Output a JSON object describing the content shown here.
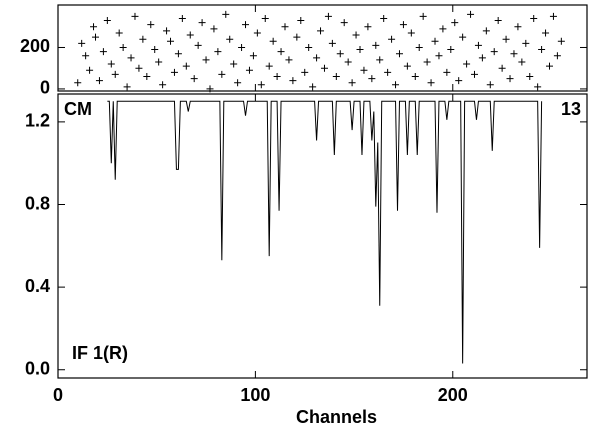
{
  "chart_data": [
    {
      "type": "scatter",
      "color": "#000000",
      "x": [
        10,
        12,
        14,
        16,
        18,
        19,
        21,
        23,
        25,
        27,
        29,
        31,
        33,
        35,
        37,
        39,
        41,
        43,
        45,
        47,
        49,
        51,
        53,
        55,
        57,
        59,
        61,
        63,
        65,
        67,
        69,
        71,
        73,
        75,
        77,
        79,
        81,
        83,
        85,
        87,
        89,
        91,
        93,
        95,
        97,
        99,
        101,
        103,
        105,
        107,
        109,
        111,
        113,
        115,
        117,
        119,
        121,
        123,
        125,
        127,
        129,
        131,
        133,
        135,
        137,
        139,
        141,
        143,
        145,
        147,
        149,
        151,
        153,
        155,
        157,
        159,
        161,
        163,
        165,
        167,
        169,
        171,
        173,
        175,
        177,
        179,
        181,
        183,
        185,
        187,
        189,
        191,
        193,
        195,
        197,
        199,
        201,
        203,
        205,
        207,
        209,
        211,
        213,
        215,
        217,
        219,
        221,
        223,
        225,
        227,
        229,
        231,
        233,
        235,
        237,
        239,
        241,
        243,
        245,
        247,
        249,
        251,
        253,
        255
      ],
      "values": [
        30,
        220,
        160,
        90,
        300,
        250,
        40,
        180,
        330,
        120,
        70,
        270,
        200,
        10,
        150,
        350,
        100,
        240,
        60,
        310,
        190,
        130,
        20,
        280,
        230,
        80,
        170,
        340,
        110,
        260,
        50,
        210,
        320,
        140,
        0,
        290,
        180,
        70,
        360,
        240,
        120,
        30,
        200,
        310,
        90,
        160,
        270,
        20,
        340,
        110,
        230,
        60,
        180,
        300,
        140,
        40,
        250,
        330,
        80,
        200,
        10,
        150,
        280,
        100,
        350,
        220,
        60,
        170,
        320,
        130,
        30,
        260,
        190,
        90,
        300,
        50,
        210,
        140,
        340,
        80,
        240,
        20,
        170,
        310,
        110,
        270,
        60,
        200,
        350,
        130,
        30,
        230,
        160,
        290,
        80,
        190,
        320,
        40,
        250,
        120,
        360,
        70,
        210,
        150,
        280,
        20,
        180,
        330,
        100,
        240,
        50,
        170,
        300,
        130,
        220,
        60,
        340,
        10,
        190,
        270,
        110,
        350,
        160,
        230
      ],
      "xlim": [
        0,
        268
      ],
      "ylim": [
        -10,
        405
      ],
      "yticks": [
        0,
        200
      ]
    },
    {
      "type": "line",
      "color": "#000000",
      "x_label": "Channels",
      "annotations": [
        "CM",
        "13",
        "IF 1(R)"
      ],
      "x": [
        25,
        26,
        27,
        28,
        29,
        30,
        59,
        60,
        61,
        62,
        65,
        66,
        67,
        82,
        83,
        84,
        94,
        95,
        96,
        106,
        107,
        108,
        111,
        112,
        113,
        130,
        131,
        132,
        139,
        140,
        141,
        148,
        149,
        150,
        153,
        154,
        155,
        158,
        159,
        160,
        161,
        162,
        163,
        164,
        171,
        172,
        173,
        176,
        177,
        178,
        181,
        182,
        183,
        191,
        192,
        193,
        196,
        197,
        198,
        204,
        205,
        206,
        211,
        212,
        213,
        219,
        220,
        221,
        243,
        244,
        245
      ],
      "values": [
        1.3,
        1.3,
        1.0,
        1.3,
        0.92,
        1.3,
        1.3,
        0.97,
        0.97,
        1.3,
        1.3,
        1.25,
        1.3,
        1.3,
        0.53,
        1.3,
        1.3,
        1.23,
        1.3,
        1.3,
        0.55,
        1.3,
        1.3,
        0.77,
        1.3,
        1.3,
        1.11,
        1.3,
        1.3,
        1.04,
        1.3,
        1.3,
        1.16,
        1.3,
        1.3,
        1.04,
        1.3,
        1.3,
        1.11,
        1.25,
        0.79,
        1.1,
        0.31,
        1.3,
        1.3,
        0.77,
        1.3,
        1.3,
        1.04,
        1.3,
        1.3,
        1.04,
        1.3,
        1.3,
        0.76,
        1.3,
        1.3,
        1.21,
        1.3,
        1.3,
        0.03,
        1.3,
        1.3,
        1.21,
        1.3,
        1.3,
        1.06,
        1.3,
        1.3,
        0.59,
        1.3
      ],
      "xlim": [
        0,
        268
      ],
      "xticks": [
        0,
        100,
        200
      ],
      "ylim": [
        -0.04,
        1.335
      ],
      "yticks": [
        {
          "value": 0,
          "label": "0.0"
        },
        0.4,
        0.8,
        1.2
      ]
    }
  ]
}
